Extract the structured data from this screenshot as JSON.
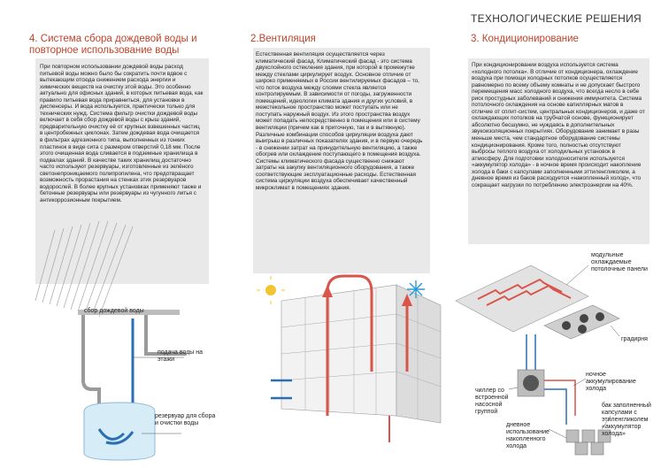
{
  "header": {
    "title": "ТЕХНОЛОГИЧЕСКИЕ РЕШЕНИЯ"
  },
  "section1": {
    "title": "4. Система сбора дождевой воды и повторное использование воды",
    "body": "При повторном использовании дождевой воды расход питьевой воды можно было бы сократить почти вдвое с вытекающим отсюда снижением расхода энергии и химических веществ на очистку этой воды. Это особенно актуально для офисных зданий, в которых питьевая вода, как правило питьевая вода приравниться, для установки в диспенсеры. И вода используется, практически только для технических нужд. Система фильтр очистки дождевой воды включает в себя сбор дождевой воды с крыш зданий, предварительную очистку её от крупных взвешенных частиц в центробежных циклонах. Затем дождевая вода очищается в фильтрах адгезионного типа, выполненных из тонких пластинок в виде сита с размером отверстий 0,18 мм. После этого очищенная вода сливается в подземные хранилища в подвалах зданий. В качестве таких хранилищ достаточно часто используют резервуары, изготовленные из зелёного светонепроницаемого полипропилена, что предотвращает возможность прорастания на стенках этих резервуаров водорослей. В более крупных установках применяют также и бетонные резервуары или резервуары из чугунного литья с антикоррозионным покрытием.",
    "labels": {
      "collect": "сбор дождевой воды",
      "supply": "подача воды на этажи",
      "tank": "резервуар для сбора и очистки воды"
    }
  },
  "section2": {
    "title": "2.Вентиляция",
    "body": "Естественная вентиляция осуществляется через климатический фасад. Климатический фасад - это система двухслойного остекления здания, при которой в промежутке между стеклами циркулирует воздух. Основное отличие от широко применяемых в России вентилируемых фасадов – то, что поток воздуха между слоями стекла является контролируемым. В зависимости от погоды, загруженности помещений, идеологии климата здания и других условий, в межстекольное пространство может поступать или не поступать наружный воздух. Из этого пространства воздух может попадать непосредственно в помещения или в систему вентиляции (причем как в приточную, так и в вытяжную). Различные комбинации способов циркуляции воздуха дают выигрыш в различных показателях здания, и в первую очередь - в снижении затрат на принудительную вентиляцию, а также обогрев или охлаждение поступающего в помещения воздуха. Системы климатического фасада существенно снижают затраты на закупку вентиляционного оборудования, а также соответствующие эксплуатационные расходы. Естественная система циркуляции воздуха обеспечивает качественный микроклимат в помещениях здания."
  },
  "section3": {
    "title": "3. Кондиционирование",
    "body": "При кондиционировании воздуха используется система «холодного потолка». В отличие от кондиционера, охлаждение воздуха при помощи холодных потолков осуществляется равномерно по всему объему комнаты и не допускает быстрого перемещения масс холодного воздуха, что всегда несло в себе риск простудных заболеваний и снижения иммунитета. Система потолочного охлаждения на основе капиллярных матов в отличие от сплит-систем, центральных кондиционеров, и даже от охлаждающих потолков на трубчатой основе, функционирует абсолютно бесшумно, не нуждаясь в дополнительных звукоизоляционных покрытиях. Оборудование занимает в разы меньше места, чем стандартное оборудование системы кондиционирования. Кроме того, полностью отсутствуют выбросы теплого воздуха от холодильных установок в атмосферу. Для подготовки холодоносителя используется «аккумулятор холода» - в ночное время происходит накопление холода в баки с капсулами заполненными эттиленгликолем, а дневное время из баков расходуется «накопленный холод», что сокращает нагрузки по потреблению электроэнергии на 40%.",
    "labels": {
      "panels": "модульные охлаждаемые потолочные панели",
      "radiator": "градирня",
      "night": "ночное аккумулирование холода",
      "chiller": "чиллер со встроенной насосной группой",
      "day": "дневное использование накопленного холода",
      "tanks": "бак заполненный капсулами с этиленгликолем «аккумулятор холода»"
    }
  },
  "colors": {
    "accent": "#c0432b",
    "water": "#2a6fb5",
    "hot": "#d9544a",
    "panel": "#e9e9e9"
  }
}
